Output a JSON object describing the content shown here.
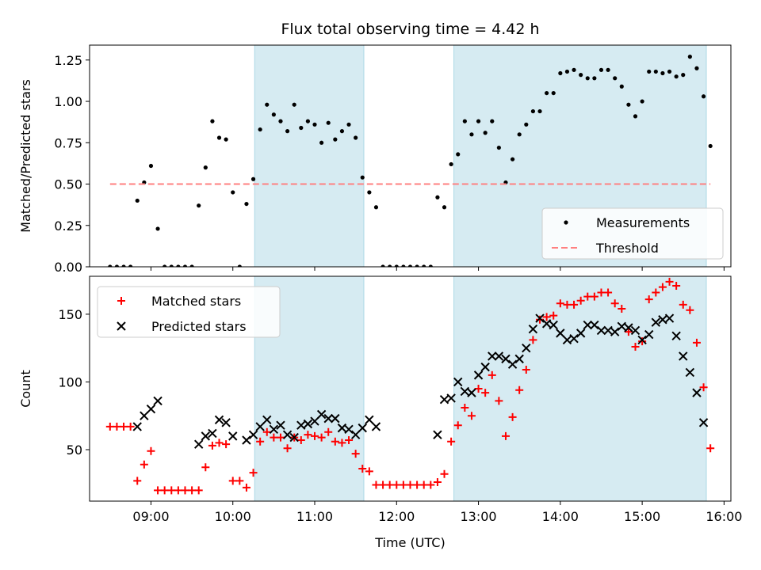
{
  "chart_data": [
    {
      "type": "scatter",
      "title": "Flux total observing time = 4.42 h",
      "ylabel": "Matched/Predicted stars",
      "xlabel": "",
      "xlim": [
        "08:15",
        "16:05"
      ],
      "ylim": [
        0.0,
        1.34
      ],
      "yticks": [
        0.0,
        0.25,
        0.5,
        0.75,
        1.0,
        1.25
      ],
      "ytick_labels": [
        "0.00",
        "0.25",
        "0.50",
        "0.75",
        "1.00",
        "1.25"
      ],
      "grid": false,
      "legend_position": "lower-right",
      "shaded_intervals": [
        [
          "10:16",
          "11:36"
        ],
        [
          "12:42",
          "15:47"
        ]
      ],
      "shade_color": "#add8e6",
      "series": [
        {
          "name": "Measurements",
          "marker": "dot",
          "color": "#000000",
          "points": [
            [
              "08:30",
              0
            ],
            [
              "08:35",
              0
            ],
            [
              "08:40",
              0
            ],
            [
              "08:45",
              0
            ],
            [
              "08:50",
              0.4
            ],
            [
              "08:55",
              0.51
            ],
            [
              "09:00",
              0.61
            ],
            [
              "09:05",
              0.23
            ],
            [
              "09:10",
              0
            ],
            [
              "09:15",
              0
            ],
            [
              "09:20",
              0
            ],
            [
              "09:25",
              0
            ],
            [
              "09:30",
              0
            ],
            [
              "09:35",
              0.37
            ],
            [
              "09:40",
              0.6
            ],
            [
              "09:45",
              0.88
            ],
            [
              "09:50",
              0.78
            ],
            [
              "09:55",
              0.77
            ],
            [
              "10:00",
              0.45
            ],
            [
              "10:05",
              0
            ],
            [
              "10:10",
              0.38
            ],
            [
              "10:15",
              0.53
            ],
            [
              "10:20",
              0.83
            ],
            [
              "10:25",
              0.98
            ],
            [
              "10:30",
              0.92
            ],
            [
              "10:35",
              0.88
            ],
            [
              "10:40",
              0.82
            ],
            [
              "10:45",
              0.98
            ],
            [
              "10:50",
              0.84
            ],
            [
              "10:55",
              0.88
            ],
            [
              "11:00",
              0.86
            ],
            [
              "11:05",
              0.75
            ],
            [
              "11:10",
              0.87
            ],
            [
              "11:15",
              0.77
            ],
            [
              "11:20",
              0.82
            ],
            [
              "11:25",
              0.86
            ],
            [
              "11:30",
              0.78
            ],
            [
              "11:35",
              0.54
            ],
            [
              "11:40",
              0.45
            ],
            [
              "11:45",
              0.36
            ],
            [
              "11:50",
              0
            ],
            [
              "11:55",
              0
            ],
            [
              "12:00",
              0
            ],
            [
              "12:05",
              0
            ],
            [
              "12:10",
              0
            ],
            [
              "12:15",
              0
            ],
            [
              "12:20",
              0
            ],
            [
              "12:25",
              0
            ],
            [
              "12:30",
              0.42
            ],
            [
              "12:35",
              0.36
            ],
            [
              "12:40",
              0.62
            ],
            [
              "12:45",
              0.68
            ],
            [
              "12:50",
              0.88
            ],
            [
              "12:55",
              0.8
            ],
            [
              "13:00",
              0.88
            ],
            [
              "13:05",
              0.81
            ],
            [
              "13:10",
              0.88
            ],
            [
              "13:15",
              0.72
            ],
            [
              "13:20",
              0.51
            ],
            [
              "13:25",
              0.65
            ],
            [
              "13:30",
              0.8
            ],
            [
              "13:35",
              0.86
            ],
            [
              "13:40",
              0.94
            ],
            [
              "13:45",
              0.94
            ],
            [
              "13:50",
              1.05
            ],
            [
              "13:55",
              1.05
            ],
            [
              "14:00",
              1.17
            ],
            [
              "14:05",
              1.18
            ],
            [
              "14:10",
              1.19
            ],
            [
              "14:15",
              1.16
            ],
            [
              "14:20",
              1.14
            ],
            [
              "14:25",
              1.14
            ],
            [
              "14:30",
              1.19
            ],
            [
              "14:35",
              1.19
            ],
            [
              "14:40",
              1.14
            ],
            [
              "14:45",
              1.09
            ],
            [
              "14:50",
              0.98
            ],
            [
              "14:55",
              0.91
            ],
            [
              "15:00",
              1.0
            ],
            [
              "15:05",
              1.18
            ],
            [
              "15:10",
              1.18
            ],
            [
              "15:15",
              1.17
            ],
            [
              "15:20",
              1.18
            ],
            [
              "15:25",
              1.15
            ],
            [
              "15:30",
              1.16
            ],
            [
              "15:35",
              1.27
            ],
            [
              "15:40",
              1.2
            ],
            [
              "15:45",
              1.03
            ],
            [
              "15:50",
              0.73
            ]
          ]
        },
        {
          "name": "Threshold",
          "marker": "dashed-line",
          "color": "#ff8080",
          "points": [
            [
              "08:30",
              0.5
            ],
            [
              "15:50",
              0.5
            ]
          ]
        }
      ]
    },
    {
      "type": "scatter",
      "title": "",
      "ylabel": "Count",
      "xlabel": "Time (UTC)",
      "xlim": [
        "08:15",
        "16:05"
      ],
      "ylim": [
        12,
        178
      ],
      "yticks": [
        50,
        100,
        150
      ],
      "ytick_labels": [
        "50",
        "100",
        "150"
      ],
      "xticks": [
        "09:00",
        "10:00",
        "11:00",
        "12:00",
        "13:00",
        "14:00",
        "15:00",
        "16:00"
      ],
      "xtick_labels": [
        "09:00",
        "10:00",
        "11:00",
        "12:00",
        "13:00",
        "14:00",
        "15:00",
        "16:00"
      ],
      "grid": false,
      "legend_position": "upper-left",
      "shaded_intervals": [
        [
          "10:16",
          "11:36"
        ],
        [
          "12:42",
          "15:47"
        ]
      ],
      "shade_color": "#add8e6",
      "series": [
        {
          "name": "Matched stars",
          "marker": "plus",
          "color": "#ff0000",
          "points": [
            [
              "08:30",
              67
            ],
            [
              "08:35",
              67
            ],
            [
              "08:40",
              67
            ],
            [
              "08:45",
              67
            ],
            [
              "08:50",
              27
            ],
            [
              "08:55",
              39
            ],
            [
              "09:00",
              49
            ],
            [
              "09:05",
              20
            ],
            [
              "09:10",
              20
            ],
            [
              "09:15",
              20
            ],
            [
              "09:20",
              20
            ],
            [
              "09:25",
              20
            ],
            [
              "09:30",
              20
            ],
            [
              "09:35",
              20
            ],
            [
              "09:40",
              37
            ],
            [
              "09:45",
              53
            ],
            [
              "09:50",
              55
            ],
            [
              "09:55",
              54
            ],
            [
              "10:00",
              27
            ],
            [
              "10:05",
              27
            ],
            [
              "10:10",
              22
            ],
            [
              "10:15",
              33
            ],
            [
              "10:20",
              56
            ],
            [
              "10:25",
              63
            ],
            [
              "10:30",
              59
            ],
            [
              "10:35",
              59
            ],
            [
              "10:40",
              51
            ],
            [
              "10:45",
              59
            ],
            [
              "10:50",
              57
            ],
            [
              "10:55",
              61
            ],
            [
              "11:00",
              60
            ],
            [
              "11:05",
              59
            ],
            [
              "11:10",
              63
            ],
            [
              "11:15",
              56
            ],
            [
              "11:20",
              55
            ],
            [
              "11:25",
              57
            ],
            [
              "11:30",
              47
            ],
            [
              "11:35",
              36
            ],
            [
              "11:40",
              34
            ],
            [
              "11:45",
              24
            ],
            [
              "11:50",
              24
            ],
            [
              "11:55",
              24
            ],
            [
              "12:00",
              24
            ],
            [
              "12:05",
              24
            ],
            [
              "12:10",
              24
            ],
            [
              "12:15",
              24
            ],
            [
              "12:20",
              24
            ],
            [
              "12:25",
              24
            ],
            [
              "12:30",
              26
            ],
            [
              "12:35",
              32
            ],
            [
              "12:40",
              56
            ],
            [
              "12:45",
              68
            ],
            [
              "12:50",
              81
            ],
            [
              "12:55",
              75
            ],
            [
              "13:00",
              95
            ],
            [
              "13:05",
              92
            ],
            [
              "13:10",
              105
            ],
            [
              "13:15",
              86
            ],
            [
              "13:20",
              60
            ],
            [
              "13:25",
              74
            ],
            [
              "13:30",
              94
            ],
            [
              "13:35",
              109
            ],
            [
              "13:40",
              131
            ],
            [
              "13:45",
              146
            ],
            [
              "13:50",
              148
            ],
            [
              "13:55",
              149
            ],
            [
              "14:00",
              158
            ],
            [
              "14:05",
              157
            ],
            [
              "14:10",
              157
            ],
            [
              "14:15",
              160
            ],
            [
              "14:20",
              163
            ],
            [
              "14:25",
              163
            ],
            [
              "14:30",
              166
            ],
            [
              "14:35",
              166
            ],
            [
              "14:40",
              158
            ],
            [
              "14:45",
              154
            ],
            [
              "14:50",
              137
            ],
            [
              "14:55",
              126
            ],
            [
              "15:00",
              130
            ],
            [
              "15:05",
              161
            ],
            [
              "15:10",
              166
            ],
            [
              "15:15",
              170
            ],
            [
              "15:20",
              174
            ],
            [
              "15:25",
              171
            ],
            [
              "15:30",
              157
            ],
            [
              "15:35",
              153
            ],
            [
              "15:40",
              129
            ],
            [
              "15:45",
              96
            ],
            [
              "15:50",
              51
            ]
          ]
        },
        {
          "name": "Predicted stars",
          "marker": "x",
          "color": "#000000",
          "points": [
            [
              "08:50",
              67
            ],
            [
              "08:55",
              75
            ],
            [
              "09:00",
              80
            ],
            [
              "09:05",
              86
            ],
            [
              "09:35",
              54
            ],
            [
              "09:40",
              60
            ],
            [
              "09:45",
              62
            ],
            [
              "09:50",
              72
            ],
            [
              "09:55",
              70
            ],
            [
              "10:00",
              60
            ],
            [
              "10:10",
              57
            ],
            [
              "10:15",
              61
            ],
            [
              "10:20",
              67
            ],
            [
              "10:25",
              72
            ],
            [
              "10:30",
              65
            ],
            [
              "10:35",
              68
            ],
            [
              "10:40",
              61
            ],
            [
              "10:45",
              59
            ],
            [
              "10:50",
              68
            ],
            [
              "10:55",
              69
            ],
            [
              "11:00",
              71
            ],
            [
              "11:05",
              76
            ],
            [
              "11:10",
              73
            ],
            [
              "11:15",
              73
            ],
            [
              "11:20",
              66
            ],
            [
              "11:25",
              65
            ],
            [
              "11:30",
              61
            ],
            [
              "11:35",
              66
            ],
            [
              "11:40",
              72
            ],
            [
              "11:45",
              67
            ],
            [
              "12:30",
              61
            ],
            [
              "12:35",
              87
            ],
            [
              "12:40",
              88
            ],
            [
              "12:45",
              100
            ],
            [
              "12:50",
              93
            ],
            [
              "12:55",
              92
            ],
            [
              "13:00",
              105
            ],
            [
              "13:05",
              111
            ],
            [
              "13:10",
              119
            ],
            [
              "13:15",
              119
            ],
            [
              "13:20",
              117
            ],
            [
              "13:25",
              113
            ],
            [
              "13:30",
              117
            ],
            [
              "13:35",
              125
            ],
            [
              "13:40",
              139
            ],
            [
              "13:45",
              147
            ],
            [
              "13:50",
              143
            ],
            [
              "13:55",
              142
            ],
            [
              "14:00",
              136
            ],
            [
              "14:05",
              131
            ],
            [
              "14:10",
              132
            ],
            [
              "14:15",
              136
            ],
            [
              "14:20",
              142
            ],
            [
              "14:25",
              142
            ],
            [
              "14:30",
              138
            ],
            [
              "14:35",
              138
            ],
            [
              "14:40",
              137
            ],
            [
              "14:45",
              141
            ],
            [
              "14:50",
              140
            ],
            [
              "14:55",
              138
            ],
            [
              "15:00",
              131
            ],
            [
              "15:05",
              135
            ],
            [
              "15:10",
              144
            ],
            [
              "15:15",
              146
            ],
            [
              "15:20",
              147
            ],
            [
              "15:25",
              134
            ],
            [
              "15:30",
              119
            ],
            [
              "15:35",
              107
            ],
            [
              "15:40",
              92
            ],
            [
              "15:45",
              70
            ]
          ]
        }
      ]
    }
  ]
}
